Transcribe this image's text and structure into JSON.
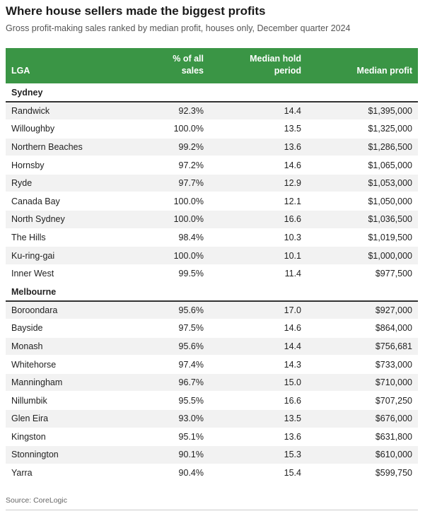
{
  "title": "Where house sellers made the biggest profits",
  "subtitle": "Gross profit-making sales ranked by median profit, houses only, December quarter 2024",
  "source": "Source: CoreLogic",
  "colors": {
    "header_bg": "#3a9545",
    "row_stripe": "#f2f2f2"
  },
  "chart_data": {
    "type": "table",
    "title": "Where house sellers made the biggest profits",
    "columns": [
      "LGA",
      "% of all sales",
      "Median hold period",
      "Median profit"
    ],
    "groups": [
      {
        "name": "Sydney",
        "rows": [
          [
            "Randwick",
            "92.3%",
            "14.4",
            "$1,395,000"
          ],
          [
            "Willoughby",
            "100.0%",
            "13.5",
            "$1,325,000"
          ],
          [
            "Northern Beaches",
            "99.2%",
            "13.6",
            "$1,286,500"
          ],
          [
            "Hornsby",
            "97.2%",
            "14.6",
            "$1,065,000"
          ],
          [
            "Ryde",
            "97.7%",
            "12.9",
            "$1,053,000"
          ],
          [
            "Canada Bay",
            "100.0%",
            "12.1",
            "$1,050,000"
          ],
          [
            "North Sydney",
            "100.0%",
            "16.6",
            "$1,036,500"
          ],
          [
            "The Hills",
            "98.4%",
            "10.3",
            "$1,019,500"
          ],
          [
            "Ku-ring-gai",
            "100.0%",
            "10.1",
            "$1,000,000"
          ],
          [
            "Inner West",
            "99.5%",
            "11.4",
            "$977,500"
          ]
        ]
      },
      {
        "name": "Melbourne",
        "rows": [
          [
            "Boroondara",
            "95.6%",
            "17.0",
            "$927,000"
          ],
          [
            "Bayside",
            "97.5%",
            "14.6",
            "$864,000"
          ],
          [
            "Monash",
            "95.6%",
            "14.4",
            "$756,681"
          ],
          [
            "Whitehorse",
            "97.4%",
            "14.3",
            "$733,000"
          ],
          [
            "Manningham",
            "96.7%",
            "15.0",
            "$710,000"
          ],
          [
            "Nillumbik",
            "95.5%",
            "16.6",
            "$707,250"
          ],
          [
            "Glen Eira",
            "93.0%",
            "13.5",
            "$676,000"
          ],
          [
            "Kingston",
            "95.1%",
            "13.6",
            "$631,800"
          ],
          [
            "Stonnington",
            "90.1%",
            "15.3",
            "$610,000"
          ],
          [
            "Yarra",
            "90.4%",
            "15.4",
            "$599,750"
          ]
        ]
      }
    ]
  }
}
